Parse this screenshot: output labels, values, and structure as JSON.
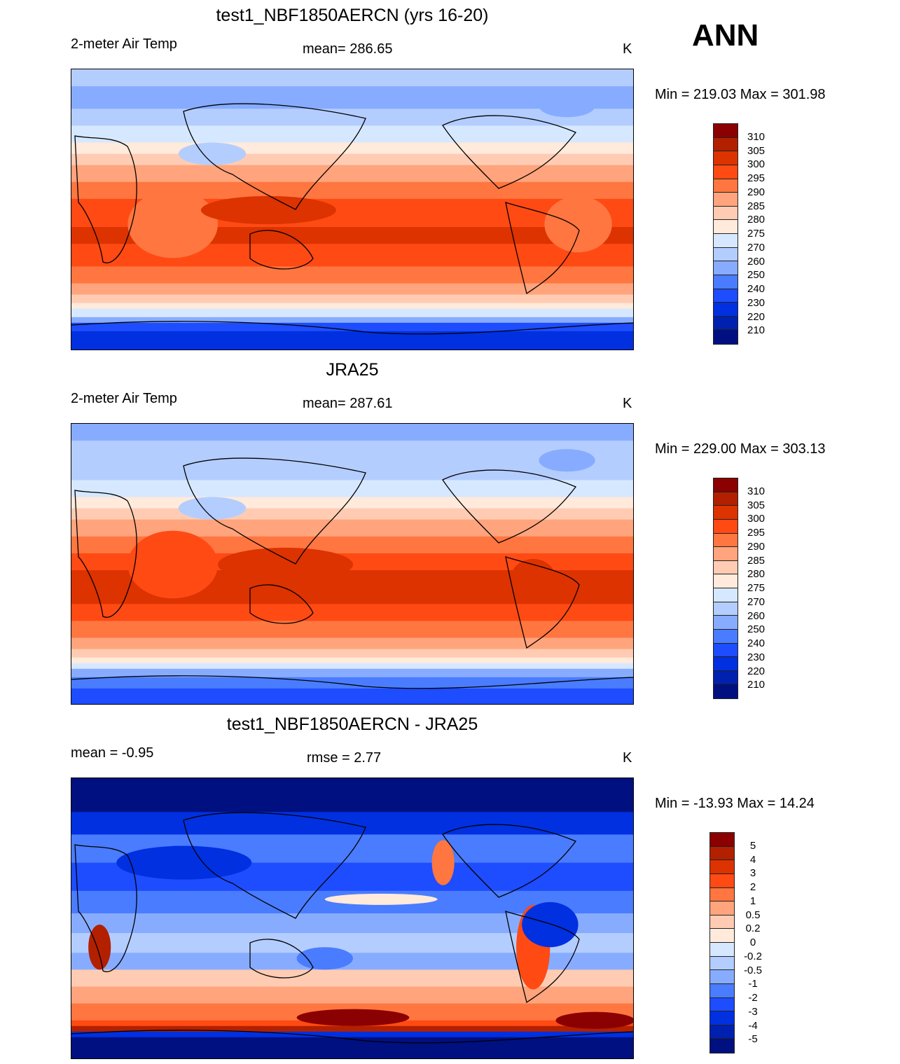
{
  "season": "ANN",
  "colors": [
    "#8b0000",
    "#b22000",
    "#dc3300",
    "#ff4a14",
    "#ff7640",
    "#ffa47c",
    "#ffccb3",
    "#ffeadb",
    "#d6e8ff",
    "#b4cdff",
    "#87acff",
    "#4a7cff",
    "#1e4cff",
    "#0030e0",
    "#0020b0",
    "#001080"
  ],
  "panels": [
    {
      "title": "test1_NBF1850AERCN (yrs 16-20)",
      "left": "2-meter Air Temp",
      "center": "mean= 286.65",
      "units": "K",
      "minmax": "Min = 219.03 Max = 301.98",
      "levels": [
        "310",
        "305",
        "300",
        "295",
        "290",
        "285",
        "280",
        "275",
        "270",
        "260",
        "250",
        "240",
        "230",
        "220",
        "210"
      ]
    },
    {
      "title": "JRA25",
      "left": "2-meter Air Temp",
      "center": "mean= 287.61",
      "units": "K",
      "minmax": "Min = 229.00 Max = 303.13",
      "levels": [
        "310",
        "305",
        "300",
        "295",
        "290",
        "285",
        "280",
        "275",
        "270",
        "260",
        "250",
        "240",
        "230",
        "220",
        "210"
      ]
    },
    {
      "title": "test1_NBF1850AERCN - JRA25",
      "left": "mean =  -0.95",
      "center": "rmse =   2.77",
      "units": "K",
      "minmax": "Min = -13.93 Max =  14.24",
      "levels": [
        "5",
        "4",
        "3",
        "2",
        "1",
        "0.5",
        "0.2",
        "0",
        "-0.2",
        "-0.5",
        "-1",
        "-2",
        "-3",
        "-4",
        "-5"
      ]
    }
  ]
}
